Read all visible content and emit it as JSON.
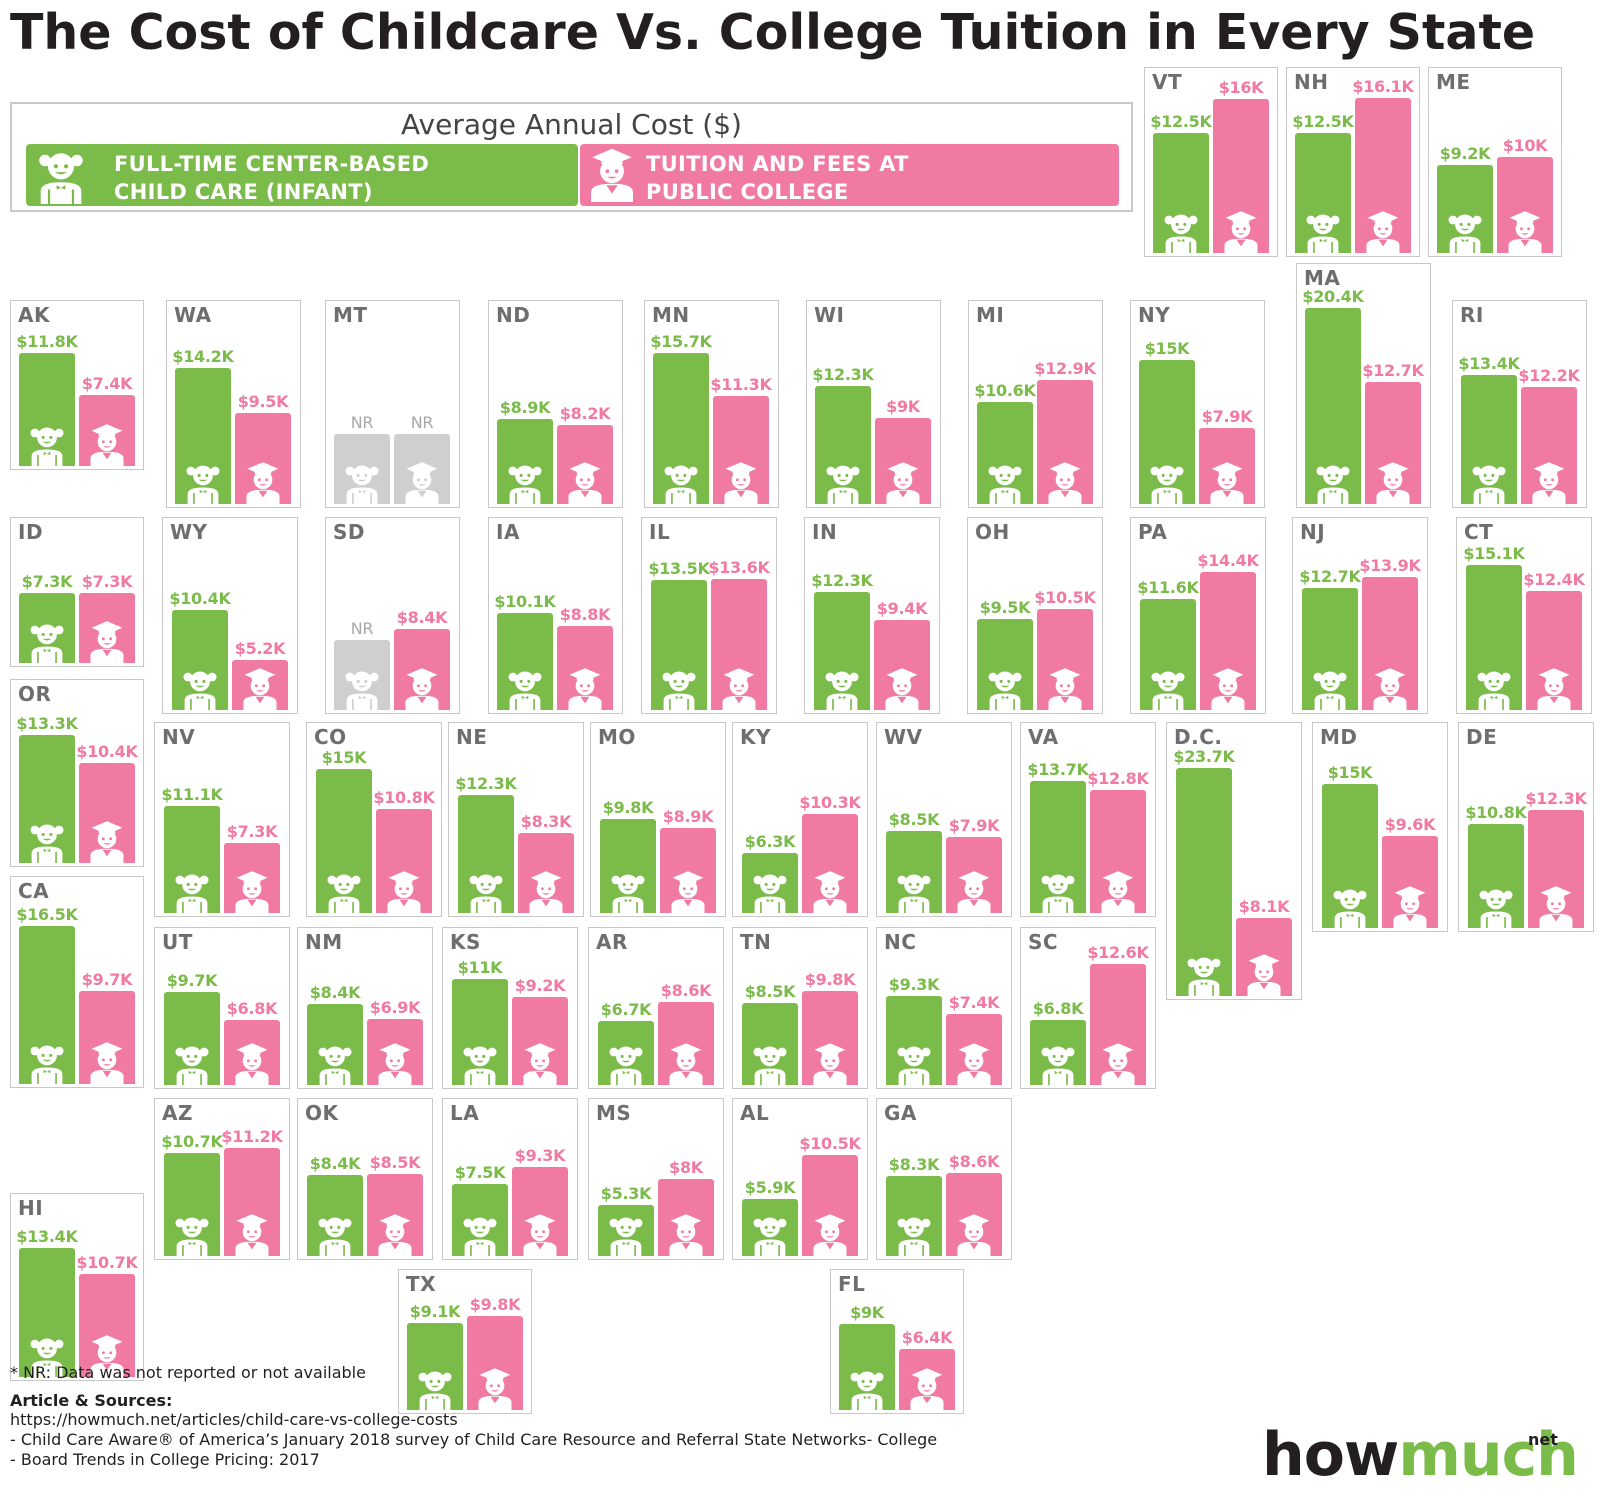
{
  "title": "The Cost of Childcare Vs. College Tuition in Every State",
  "legend": {
    "title": "Average Annual Cost ($)",
    "childcare_label": "FULL-TIME CENTER-BASED\nCHILD CARE (INFANT)",
    "tuition_label": "TUITION AND FEES AT\nPUBLIC COLLEGE"
  },
  "colors": {
    "childcare": "#7bbb4a",
    "tuition": "#f17aa3",
    "not_reported": "#cfcfcf"
  },
  "chart_data": {
    "type": "bar",
    "title": "The Cost of Childcare Vs. College Tuition in Every State",
    "ylabel": "Average Annual Cost ($)",
    "unit": "thousand USD",
    "series_names": [
      "Full-time center-based child care (infant)",
      "Tuition and fees at public college"
    ],
    "not_reported_label": "NR",
    "states": [
      {
        "abbr": "VT",
        "childcare": 12.5,
        "tuition": 16.0,
        "childcare_label": "$12.5K",
        "tuition_label": "$16K"
      },
      {
        "abbr": "NH",
        "childcare": 12.5,
        "tuition": 16.1,
        "childcare_label": "$12.5K",
        "tuition_label": "$16.1K"
      },
      {
        "abbr": "ME",
        "childcare": 9.2,
        "tuition": 10.0,
        "childcare_label": "$9.2K",
        "tuition_label": "$10K"
      },
      {
        "abbr": "AK",
        "childcare": 11.8,
        "tuition": 7.4,
        "childcare_label": "$11.8K",
        "tuition_label": "$7.4K"
      },
      {
        "abbr": "WA",
        "childcare": 14.2,
        "tuition": 9.5,
        "childcare_label": "$14.2K",
        "tuition_label": "$9.5K"
      },
      {
        "abbr": "MT",
        "childcare": null,
        "tuition": null,
        "childcare_label": "NR",
        "tuition_label": "NR"
      },
      {
        "abbr": "ND",
        "childcare": 8.9,
        "tuition": 8.2,
        "childcare_label": "$8.9K",
        "tuition_label": "$8.2K"
      },
      {
        "abbr": "MN",
        "childcare": 15.7,
        "tuition": 11.3,
        "childcare_label": "$15.7K",
        "tuition_label": "$11.3K"
      },
      {
        "abbr": "WI",
        "childcare": 12.3,
        "tuition": 9.0,
        "childcare_label": "$12.3K",
        "tuition_label": "$9K"
      },
      {
        "abbr": "MI",
        "childcare": 10.6,
        "tuition": 12.9,
        "childcare_label": "$10.6K",
        "tuition_label": "$12.9K"
      },
      {
        "abbr": "NY",
        "childcare": 15.0,
        "tuition": 7.9,
        "childcare_label": "$15K",
        "tuition_label": "$7.9K"
      },
      {
        "abbr": "MA",
        "childcare": 20.4,
        "tuition": 12.7,
        "childcare_label": "$20.4K",
        "tuition_label": "$12.7K"
      },
      {
        "abbr": "RI",
        "childcare": 13.4,
        "tuition": 12.2,
        "childcare_label": "$13.4K",
        "tuition_label": "$12.2K"
      },
      {
        "abbr": "ID",
        "childcare": 7.3,
        "tuition": 7.3,
        "childcare_label": "$7.3K",
        "tuition_label": "$7.3K"
      },
      {
        "abbr": "WY",
        "childcare": 10.4,
        "tuition": 5.2,
        "childcare_label": "$10.4K",
        "tuition_label": "$5.2K"
      },
      {
        "abbr": "SD",
        "childcare": null,
        "tuition": 8.4,
        "childcare_label": "NR",
        "tuition_label": "$8.4K"
      },
      {
        "abbr": "IA",
        "childcare": 10.1,
        "tuition": 8.8,
        "childcare_label": "$10.1K",
        "tuition_label": "$8.8K"
      },
      {
        "abbr": "IL",
        "childcare": 13.5,
        "tuition": 13.6,
        "childcare_label": "$13.5K",
        "tuition_label": "$13.6K"
      },
      {
        "abbr": "IN",
        "childcare": 12.3,
        "tuition": 9.4,
        "childcare_label": "$12.3K",
        "tuition_label": "$9.4K"
      },
      {
        "abbr": "OH",
        "childcare": 9.5,
        "tuition": 10.5,
        "childcare_label": "$9.5K",
        "tuition_label": "$10.5K"
      },
      {
        "abbr": "PA",
        "childcare": 11.6,
        "tuition": 14.4,
        "childcare_label": "$11.6K",
        "tuition_label": "$14.4K"
      },
      {
        "abbr": "NJ",
        "childcare": 12.7,
        "tuition": 13.9,
        "childcare_label": "$12.7K",
        "tuition_label": "$13.9K"
      },
      {
        "abbr": "CT",
        "childcare": 15.1,
        "tuition": 12.4,
        "childcare_label": "$15.1K",
        "tuition_label": "$12.4K"
      },
      {
        "abbr": "OR",
        "childcare": 13.3,
        "tuition": 10.4,
        "childcare_label": "$13.3K",
        "tuition_label": "$10.4K"
      },
      {
        "abbr": "NV",
        "childcare": 11.1,
        "tuition": 7.3,
        "childcare_label": "$11.1K",
        "tuition_label": "$7.3K"
      },
      {
        "abbr": "CO",
        "childcare": 15.0,
        "tuition": 10.8,
        "childcare_label": "$15K",
        "tuition_label": "$10.8K"
      },
      {
        "abbr": "NE",
        "childcare": 12.3,
        "tuition": 8.3,
        "childcare_label": "$12.3K",
        "tuition_label": "$8.3K"
      },
      {
        "abbr": "MO",
        "childcare": 9.8,
        "tuition": 8.9,
        "childcare_label": "$9.8K",
        "tuition_label": "$8.9K"
      },
      {
        "abbr": "KY",
        "childcare": 6.3,
        "tuition": 10.3,
        "childcare_label": "$6.3K",
        "tuition_label": "$10.3K"
      },
      {
        "abbr": "WV",
        "childcare": 8.5,
        "tuition": 7.9,
        "childcare_label": "$8.5K",
        "tuition_label": "$7.9K"
      },
      {
        "abbr": "VA",
        "childcare": 13.7,
        "tuition": 12.8,
        "childcare_label": "$13.7K",
        "tuition_label": "$12.8K"
      },
      {
        "abbr": "D.C.",
        "childcare": 23.7,
        "tuition": 8.1,
        "childcare_label": "$23.7K",
        "tuition_label": "$8.1K"
      },
      {
        "abbr": "MD",
        "childcare": 15.0,
        "tuition": 9.6,
        "childcare_label": "$15K",
        "tuition_label": "$9.6K"
      },
      {
        "abbr": "DE",
        "childcare": 10.8,
        "tuition": 12.3,
        "childcare_label": "$10.8K",
        "tuition_label": "$12.3K"
      },
      {
        "abbr": "CA",
        "childcare": 16.5,
        "tuition": 9.7,
        "childcare_label": "$16.5K",
        "tuition_label": "$9.7K"
      },
      {
        "abbr": "UT",
        "childcare": 9.7,
        "tuition": 6.8,
        "childcare_label": "$9.7K",
        "tuition_label": "$6.8K"
      },
      {
        "abbr": "NM",
        "childcare": 8.4,
        "tuition": 6.9,
        "childcare_label": "$8.4K",
        "tuition_label": "$6.9K"
      },
      {
        "abbr": "KS",
        "childcare": 11.0,
        "tuition": 9.2,
        "childcare_label": "$11K",
        "tuition_label": "$9.2K"
      },
      {
        "abbr": "AR",
        "childcare": 6.7,
        "tuition": 8.6,
        "childcare_label": "$6.7K",
        "tuition_label": "$8.6K"
      },
      {
        "abbr": "TN",
        "childcare": 8.5,
        "tuition": 9.8,
        "childcare_label": "$8.5K",
        "tuition_label": "$9.8K"
      },
      {
        "abbr": "NC",
        "childcare": 9.3,
        "tuition": 7.4,
        "childcare_label": "$9.3K",
        "tuition_label": "$7.4K"
      },
      {
        "abbr": "SC",
        "childcare": 6.8,
        "tuition": 12.6,
        "childcare_label": "$6.8K",
        "tuition_label": "$12.6K"
      },
      {
        "abbr": "AZ",
        "childcare": 10.7,
        "tuition": 11.2,
        "childcare_label": "$10.7K",
        "tuition_label": "$11.2K"
      },
      {
        "abbr": "OK",
        "childcare": 8.4,
        "tuition": 8.5,
        "childcare_label": "$8.4K",
        "tuition_label": "$8.5K"
      },
      {
        "abbr": "LA",
        "childcare": 7.5,
        "tuition": 9.3,
        "childcare_label": "$7.5K",
        "tuition_label": "$9.3K"
      },
      {
        "abbr": "MS",
        "childcare": 5.3,
        "tuition": 8.0,
        "childcare_label": "$5.3K",
        "tuition_label": "$8K"
      },
      {
        "abbr": "AL",
        "childcare": 5.9,
        "tuition": 10.5,
        "childcare_label": "$5.9K",
        "tuition_label": "$10.5K"
      },
      {
        "abbr": "GA",
        "childcare": 8.3,
        "tuition": 8.6,
        "childcare_label": "$8.3K",
        "tuition_label": "$8.6K"
      },
      {
        "abbr": "HI",
        "childcare": 13.4,
        "tuition": 10.7,
        "childcare_label": "$13.4K",
        "tuition_label": "$10.7K"
      },
      {
        "abbr": "TX",
        "childcare": 9.1,
        "tuition": 9.8,
        "childcare_label": "$9.1K",
        "tuition_label": "$9.8K"
      },
      {
        "abbr": "FL",
        "childcare": 9.0,
        "tuition": 6.4,
        "childcare_label": "$9K",
        "tuition_label": "$6.4K"
      }
    ]
  },
  "footer": {
    "note": "* NR: Data was not reported or not available",
    "sources_heading": "Article & Sources:",
    "source_lines": [
      "https://howmuch.net/articles/child-care-vs-college-costs",
      "- Child Care Aware® of America’s January 2018 survey of Child Care Resource and Referral State Networks- College",
      "- Board Trends in College Pricing: 2017"
    ],
    "logo_main": "how",
    "logo_accent": "much",
    "logo_suffix": "net"
  }
}
